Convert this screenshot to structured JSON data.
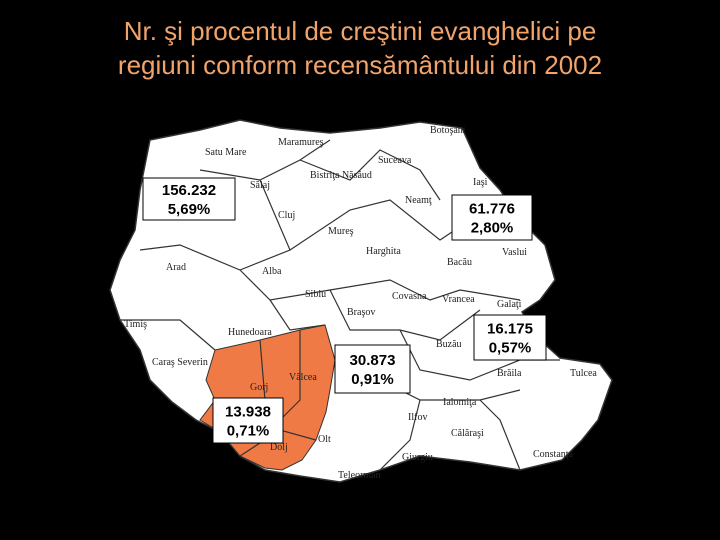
{
  "title": [
    "Nr. şi procentul de creştini evanghelici pe",
    "regiuni conform recensământului din 2002"
  ],
  "counties": [
    "Botoşani",
    "Satu Mare",
    "Maramureş",
    "Suceava",
    "Bistriţa Năsăud",
    "Sălaj",
    "Iaşi",
    "Neamţ",
    "Cluj",
    "Mureş",
    "Harghita",
    "Bacău",
    "Vaslui",
    "Arad",
    "Alba",
    "Sibiu",
    "Covasna",
    "Vrancea",
    "Galaţi",
    "Braşov",
    "Timiş",
    "Hunedoara",
    "Buzău",
    "Caraş Severin",
    "Vâlcea",
    "Gorj",
    "Brăila",
    "Tulcea",
    "Ialomiţa",
    "Ilfov",
    "Călăraşi",
    "Dolj",
    "Olt",
    "Giurgiu",
    "Constanţa",
    "Teleorman"
  ],
  "callouts": [
    {
      "count": "156.232",
      "percent": "5,69%"
    },
    {
      "count": "61.776",
      "percent": "2,80%"
    },
    {
      "count": "16.175",
      "percent": "0,57%"
    },
    {
      "count": "30.873",
      "percent": "0,91%"
    },
    {
      "count": "13.938",
      "percent": "0,71%"
    }
  ]
}
